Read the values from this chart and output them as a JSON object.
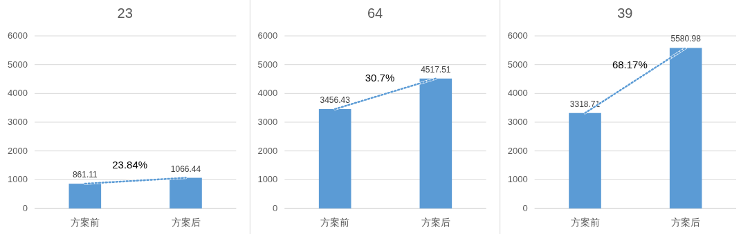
{
  "chart_data": [
    {
      "type": "bar",
      "title": "23",
      "categories": [
        "方案前",
        "方案后"
      ],
      "series": [
        {
          "color": "#5b9bd5",
          "values": [
            861.11,
            1066.44
          ],
          "value_labels": [
            "861.11",
            "1066.44"
          ]
        },
        {
          "type": "line",
          "color": "#5b9bd5",
          "line_style": "dotted",
          "values": [
            861.11,
            1066.44
          ]
        }
      ],
      "ylim": [
        0,
        6000
      ],
      "yticks": [
        0,
        1000,
        2000,
        3000,
        4000,
        5000,
        6000
      ],
      "grid": "y",
      "annotations": [
        "23.84%"
      ]
    },
    {
      "type": "bar",
      "title": "64",
      "categories": [
        "方案前",
        "方案后"
      ],
      "series": [
        {
          "color": "#5b9bd5",
          "values": [
            3456.43,
            4517.51
          ],
          "value_labels": [
            "3456.43",
            "4517.51"
          ]
        },
        {
          "type": "line",
          "color": "#5b9bd5",
          "line_style": "dotted",
          "values": [
            3456.43,
            4517.51
          ]
        }
      ],
      "ylim": [
        0,
        6000
      ],
      "yticks": [
        0,
        1000,
        2000,
        3000,
        4000,
        5000,
        6000
      ],
      "grid": "y",
      "annotations": [
        "30.7%"
      ]
    },
    {
      "type": "bar",
      "title": "39",
      "categories": [
        "方案前",
        "方案后"
      ],
      "series": [
        {
          "color": "#5b9bd5",
          "values": [
            3318.71,
            5580.98
          ],
          "value_labels": [
            "3318.71",
            "5580.98"
          ]
        },
        {
          "type": "line",
          "color": "#5b9bd5",
          "line_style": "dotted",
          "values": [
            3318.71,
            5580.98
          ]
        }
      ],
      "ylim": [
        0,
        6000
      ],
      "yticks": [
        0,
        1000,
        2000,
        3000,
        4000,
        5000,
        6000
      ],
      "grid": "y",
      "annotations": [
        "68.17%"
      ]
    }
  ]
}
